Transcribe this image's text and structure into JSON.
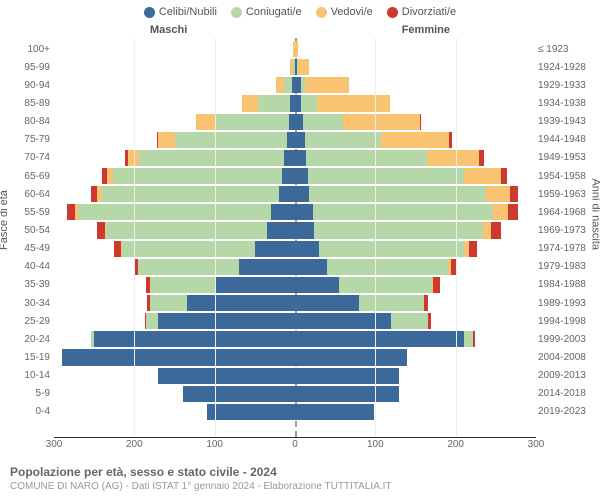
{
  "type": "population-pyramid",
  "legend": [
    {
      "label": "Celibi/Nubili",
      "color": "#3b6a9a"
    },
    {
      "label": "Coniugati/e",
      "color": "#b6d7a8"
    },
    {
      "label": "Vedovi/e",
      "color": "#f8c471"
    },
    {
      "label": "Divorziati/e",
      "color": "#cc3a2f"
    }
  ],
  "side_labels": {
    "left": "Maschi",
    "right": "Femmine"
  },
  "y_titles": {
    "left": "Fasce di età",
    "right": "Anni di nascita"
  },
  "footer": {
    "title": "Popolazione per età, sesso e stato civile - 2024",
    "subtitle": "COMUNE DI NARO (AG) - Dati ISTAT 1° gennaio 2024 - Elaborazione TUTTITALIA.IT"
  },
  "x_axis": {
    "max": 300,
    "ticks": [
      300,
      200,
      100,
      0,
      100,
      200,
      300
    ]
  },
  "colors": {
    "celibi": "#3b6a9a",
    "coniugati": "#b6d7a8",
    "vedovi": "#f8c471",
    "divorziati": "#cc3a2f",
    "grid": "#eeeeee",
    "axis_center": "#999999",
    "background": "#ffffff",
    "label_text": "#666666",
    "title_text": "#666666",
    "subtitle_text": "#999999"
  },
  "typography": {
    "legend_fontsize": 11,
    "tick_fontsize": 10,
    "title_fontsize": 12,
    "subtitle_fontsize": 10
  },
  "rows": [
    {
      "age": "100+",
      "birth": "≤ 1923",
      "m": {
        "c": 0,
        "co": 0,
        "v": 2,
        "d": 0
      },
      "f": {
        "c": 0,
        "co": 0,
        "v": 4,
        "d": 0
      }
    },
    {
      "age": "95-99",
      "birth": "1924-1928",
      "m": {
        "c": 0,
        "co": 2,
        "v": 4,
        "d": 0
      },
      "f": {
        "c": 2,
        "co": 2,
        "v": 14,
        "d": 0
      }
    },
    {
      "age": "90-94",
      "birth": "1929-1933",
      "m": {
        "c": 4,
        "co": 10,
        "v": 10,
        "d": 0
      },
      "f": {
        "c": 8,
        "co": 4,
        "v": 55,
        "d": 0
      }
    },
    {
      "age": "85-89",
      "birth": "1934-1938",
      "m": {
        "c": 6,
        "co": 40,
        "v": 20,
        "d": 0
      },
      "f": {
        "c": 8,
        "co": 20,
        "v": 90,
        "d": 0
      }
    },
    {
      "age": "80-84",
      "birth": "1939-1943",
      "m": {
        "c": 8,
        "co": 90,
        "v": 25,
        "d": 0
      },
      "f": {
        "c": 10,
        "co": 50,
        "v": 95,
        "d": 2
      }
    },
    {
      "age": "75-79",
      "birth": "1944-1948",
      "m": {
        "c": 10,
        "co": 140,
        "v": 20,
        "d": 2
      },
      "f": {
        "c": 12,
        "co": 95,
        "v": 85,
        "d": 4
      }
    },
    {
      "age": "70-74",
      "birth": "1949-1953",
      "m": {
        "c": 14,
        "co": 180,
        "v": 14,
        "d": 4
      },
      "f": {
        "c": 14,
        "co": 150,
        "v": 65,
        "d": 6
      }
    },
    {
      "age": "65-69",
      "birth": "1954-1958",
      "m": {
        "c": 16,
        "co": 210,
        "v": 8,
        "d": 6
      },
      "f": {
        "c": 16,
        "co": 195,
        "v": 45,
        "d": 8
      }
    },
    {
      "age": "60-64",
      "birth": "1959-1963",
      "m": {
        "c": 20,
        "co": 220,
        "v": 6,
        "d": 8
      },
      "f": {
        "c": 18,
        "co": 220,
        "v": 30,
        "d": 10
      }
    },
    {
      "age": "55-59",
      "birth": "1964-1968",
      "m": {
        "c": 30,
        "co": 240,
        "v": 4,
        "d": 10
      },
      "f": {
        "c": 22,
        "co": 225,
        "v": 18,
        "d": 12
      }
    },
    {
      "age": "50-54",
      "birth": "1969-1973",
      "m": {
        "c": 35,
        "co": 200,
        "v": 2,
        "d": 10
      },
      "f": {
        "c": 24,
        "co": 210,
        "v": 10,
        "d": 12
      }
    },
    {
      "age": "45-49",
      "birth": "1974-1978",
      "m": {
        "c": 50,
        "co": 165,
        "v": 2,
        "d": 8
      },
      "f": {
        "c": 30,
        "co": 180,
        "v": 6,
        "d": 10
      }
    },
    {
      "age": "40-44",
      "birth": "1979-1983",
      "m": {
        "c": 70,
        "co": 125,
        "v": 0,
        "d": 6
      },
      "f": {
        "c": 40,
        "co": 150,
        "v": 4,
        "d": 8
      }
    },
    {
      "age": "35-39",
      "birth": "1984-1988",
      "m": {
        "c": 100,
        "co": 80,
        "v": 0,
        "d": 6
      },
      "f": {
        "c": 55,
        "co": 115,
        "v": 2,
        "d": 8
      }
    },
    {
      "age": "30-34",
      "birth": "1989-1993",
      "m": {
        "c": 135,
        "co": 45,
        "v": 0,
        "d": 4
      },
      "f": {
        "c": 80,
        "co": 80,
        "v": 0,
        "d": 6
      }
    },
    {
      "age": "25-29",
      "birth": "1994-1998",
      "m": {
        "c": 170,
        "co": 15,
        "v": 0,
        "d": 2
      },
      "f": {
        "c": 120,
        "co": 45,
        "v": 0,
        "d": 4
      }
    },
    {
      "age": "20-24",
      "birth": "1999-2003",
      "m": {
        "c": 250,
        "co": 4,
        "v": 0,
        "d": 0
      },
      "f": {
        "c": 210,
        "co": 12,
        "v": 0,
        "d": 2
      }
    },
    {
      "age": "15-19",
      "birth": "2004-2008",
      "m": {
        "c": 290,
        "co": 0,
        "v": 0,
        "d": 0
      },
      "f": {
        "c": 140,
        "co": 0,
        "v": 0,
        "d": 0
      }
    },
    {
      "age": "10-14",
      "birth": "2009-2013",
      "m": {
        "c": 170,
        "co": 0,
        "v": 0,
        "d": 0
      },
      "f": {
        "c": 130,
        "co": 0,
        "v": 0,
        "d": 0
      }
    },
    {
      "age": "5-9",
      "birth": "2014-2018",
      "m": {
        "c": 140,
        "co": 0,
        "v": 0,
        "d": 0
      },
      "f": {
        "c": 130,
        "co": 0,
        "v": 0,
        "d": 0
      }
    },
    {
      "age": "0-4",
      "birth": "2019-2023",
      "m": {
        "c": 110,
        "co": 0,
        "v": 0,
        "d": 0
      },
      "f": {
        "c": 98,
        "co": 0,
        "v": 0,
        "d": 0
      }
    }
  ]
}
